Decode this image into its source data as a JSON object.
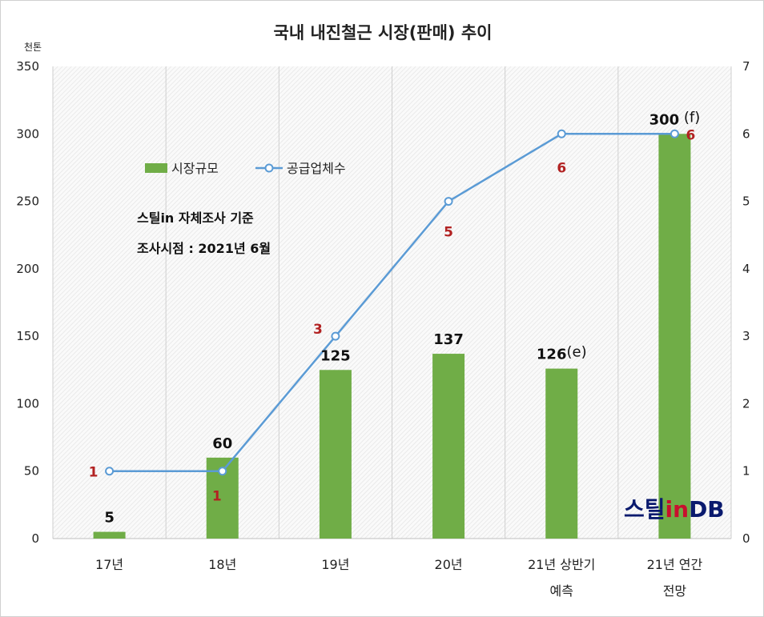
{
  "chart_data": {
    "type": "bar",
    "title": "국내 내진철근 시장(판매) 추이",
    "y_unit": "천톤",
    "categories": [
      [
        "17년"
      ],
      [
        "18년"
      ],
      [
        "19년"
      ],
      [
        "20년"
      ],
      [
        "21년 상반기",
        "예측"
      ],
      [
        "21년 연간",
        "전망"
      ]
    ],
    "ylim": [
      0,
      350
    ],
    "y_ticks": [
      "0",
      "50",
      "100",
      "150",
      "200",
      "250",
      "300",
      "350"
    ],
    "y2lim": [
      0,
      7
    ],
    "y2_ticks": [
      "0",
      "1",
      "2",
      "3",
      "4",
      "5",
      "6",
      "7"
    ],
    "grid": true,
    "legend_position": "upper-left",
    "series": [
      {
        "name": "시장규모",
        "type": "bar",
        "axis": "left",
        "color": "#70ad47",
        "values": [
          5,
          60,
          125,
          137,
          126,
          300
        ],
        "labels": [
          "5",
          "60",
          "125",
          "137",
          "126",
          "300"
        ],
        "label_suffix": [
          "",
          "",
          "",
          "",
          "(e)",
          " (f)"
        ]
      },
      {
        "name": "공급업체수",
        "type": "line",
        "axis": "right",
        "color": "#5b9bd5",
        "values": [
          1,
          1,
          3,
          5,
          6,
          6
        ],
        "labels": [
          "1",
          "1",
          "3",
          "5",
          "6",
          "6"
        ]
      }
    ],
    "annotations": [
      "스틸in 자체조사 기준",
      "조사시점 : 2021년 6월"
    ]
  },
  "logo": {
    "part1": "스틸",
    "part2": "in",
    "part3": "DB"
  }
}
